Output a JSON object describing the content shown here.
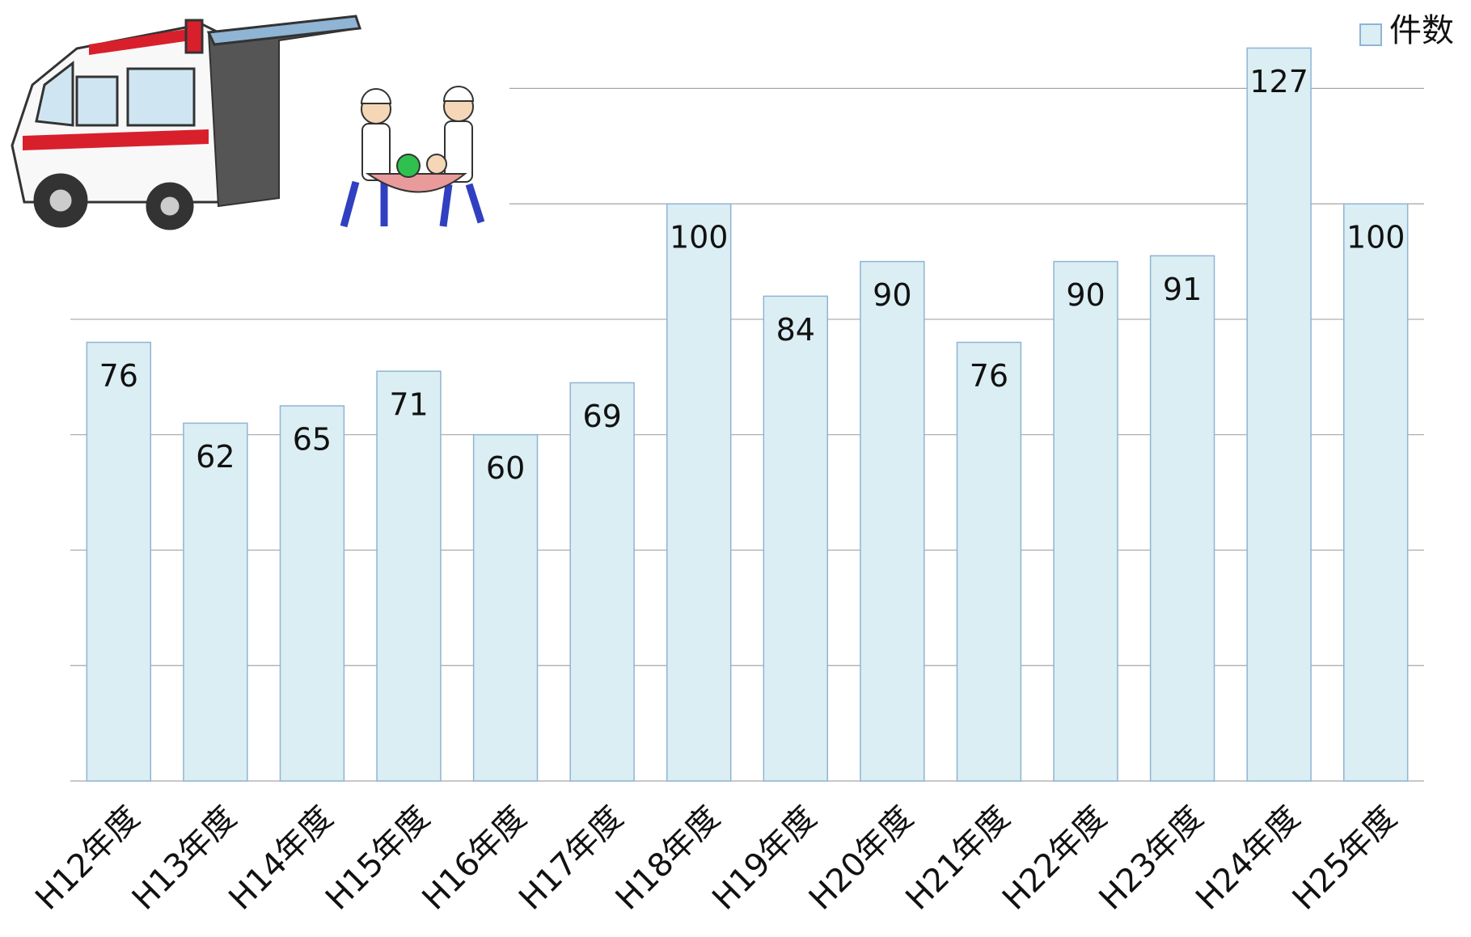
{
  "chart_data": {
    "type": "bar",
    "categories": [
      "H12年度",
      "H13年度",
      "H14年度",
      "H15年度",
      "H16年度",
      "H17年度",
      "H18年度",
      "H19年度",
      "H20年度",
      "H21年度",
      "H22年度",
      "H23年度",
      "H24年度",
      "H25年度"
    ],
    "series": [
      {
        "name": "件数",
        "color": "#daeef3",
        "values": [
          76,
          62,
          65,
          71,
          60,
          69,
          100,
          84,
          90,
          76,
          90,
          91,
          127,
          100
        ]
      }
    ],
    "ylim": [
      0,
      130
    ],
    "yticks": [
      0,
      20,
      40,
      60,
      80,
      100,
      120
    ],
    "grid": true,
    "legend": "top-right"
  }
}
